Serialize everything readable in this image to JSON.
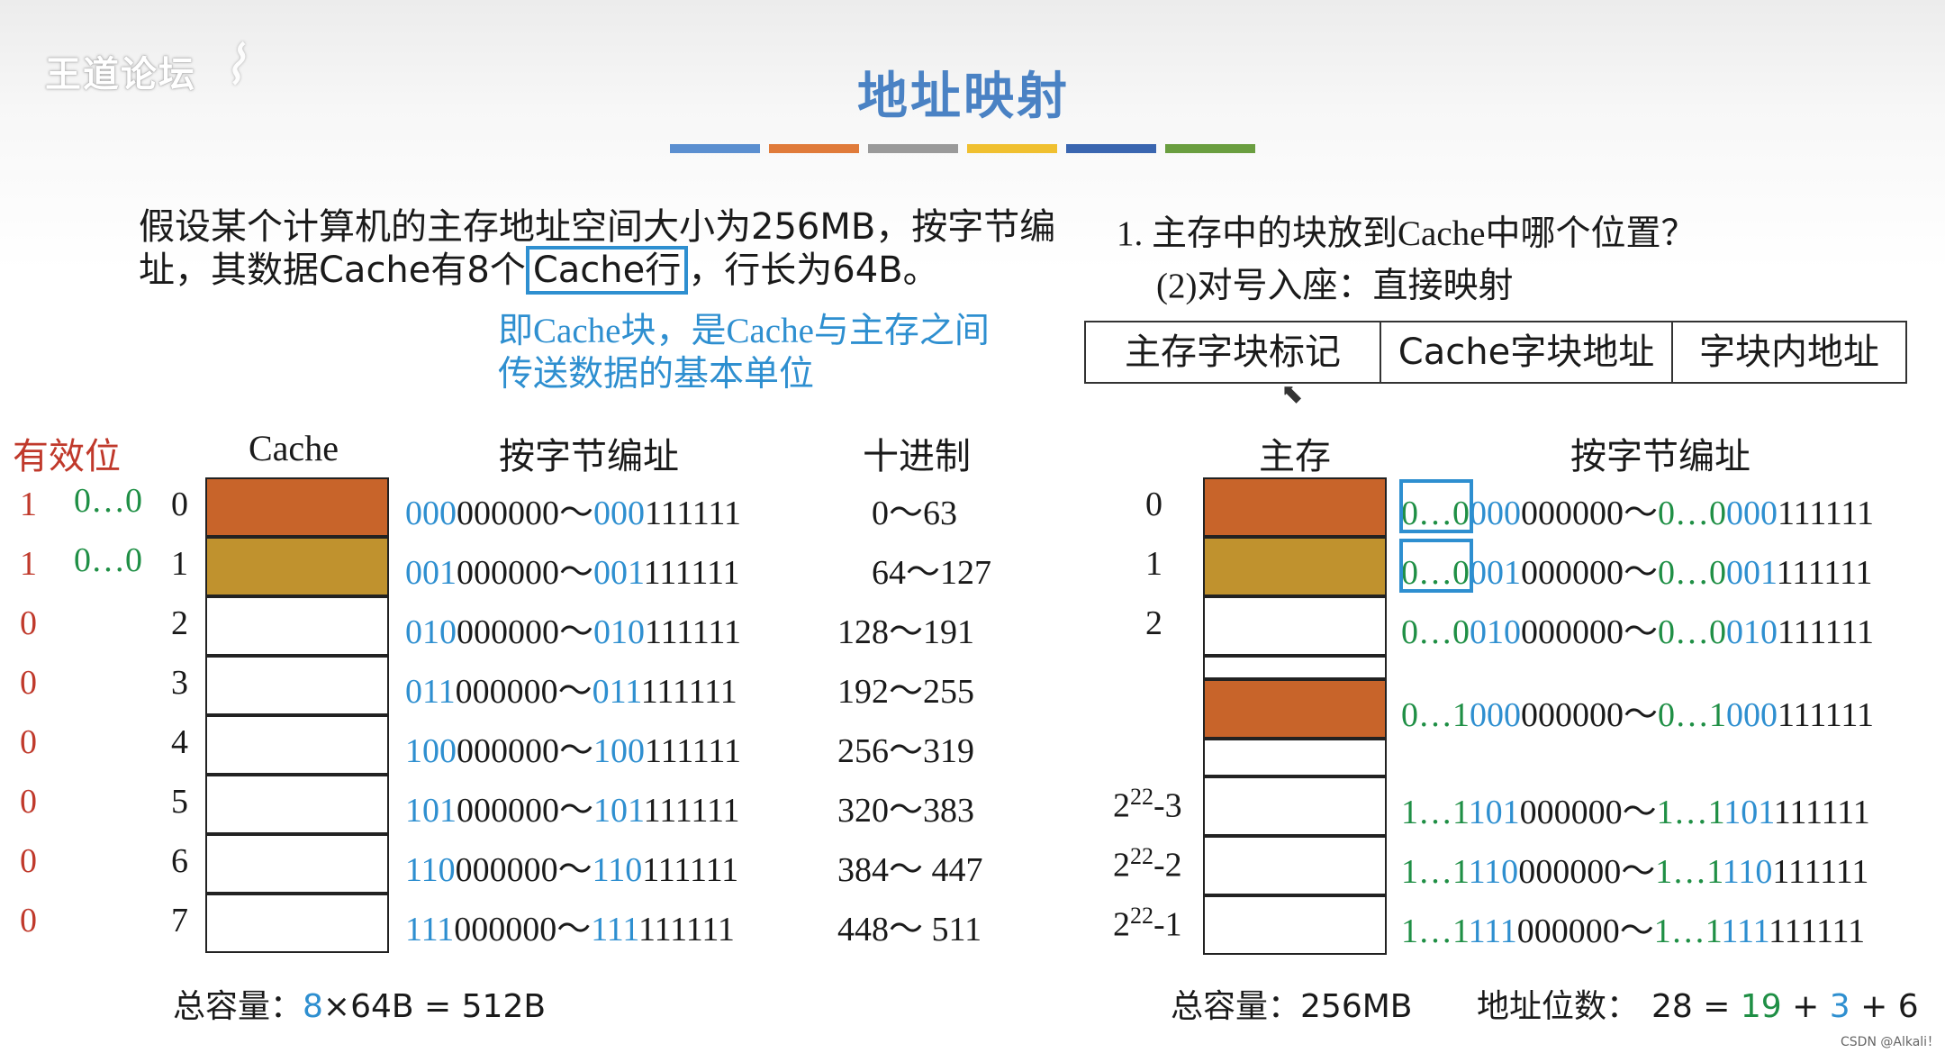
{
  "watermark": "王道论坛",
  "title": "地址映射",
  "title_bar_colors": [
    "#5b8fd0",
    "#e07b3a",
    "#9a9a9a",
    "#f0c030",
    "#3a66b0",
    "#6a9e40"
  ],
  "intro": {
    "line1": "假设某个计算机的主存地址空间大小为256MB，按字节编",
    "line2_a": "址，其数据Cache有8个",
    "line2_box": "Cache行",
    "line2_b": "，行长为64B。",
    "note1": "即Cache块，是Cache与主存之间",
    "note2": "传送数据的基本单位"
  },
  "question": {
    "q1": "1. 主存中的块放到Cache中哪个位置？",
    "q2": "(2)对号入座：直接映射"
  },
  "address_fields": [
    "主存字块标记",
    "Cache字块地址",
    "字块内地址"
  ],
  "left_headers": {
    "valid": "有效位",
    "cache": "Cache",
    "byte_addr": "按字节编址",
    "decimal": "十进制"
  },
  "right_headers": {
    "main": "主存",
    "byte_addr": "按字节编址"
  },
  "cache_rows": [
    {
      "valid": "1",
      "tag": "0…0",
      "idx": "0",
      "p1": "000",
      "s1": "000000～",
      "p2": "000",
      "s2": "111111",
      "dec": "0～63",
      "color": "#c8642a"
    },
    {
      "valid": "1",
      "tag": "0…0",
      "idx": "1",
      "p1": "001",
      "s1": "000000～",
      "p2": "001",
      "s2": "111111",
      "dec": "64～127",
      "color": "#c0922e"
    },
    {
      "valid": "0",
      "tag": "",
      "idx": "2",
      "p1": "010",
      "s1": "000000～",
      "p2": "010",
      "s2": "111111",
      "dec": "128～191",
      "color": ""
    },
    {
      "valid": "0",
      "tag": "",
      "idx": "3",
      "p1": "011",
      "s1": "000000～",
      "p2": "011",
      "s2": "111111",
      "dec": "192～255",
      "color": ""
    },
    {
      "valid": "0",
      "tag": "",
      "idx": "4",
      "p1": "100",
      "s1": "000000～",
      "p2": "100",
      "s2": "111111",
      "dec": "256～319",
      "color": ""
    },
    {
      "valid": "0",
      "tag": "",
      "idx": "5",
      "p1": "101",
      "s1": "000000～",
      "p2": "101",
      "s2": "111111",
      "dec": "320～383",
      "color": ""
    },
    {
      "valid": "0",
      "tag": "",
      "idx": "6",
      "p1": "110",
      "s1": "000000～",
      "p2": "110",
      "s2": "111111",
      "dec": "384～ 447",
      "color": ""
    },
    {
      "valid": "0",
      "tag": "",
      "idx": "7",
      "p1": "111",
      "s1": "000000～",
      "p2": "111",
      "s2": "111111",
      "dec": "448～ 511",
      "color": ""
    }
  ],
  "main_rows": [
    {
      "label": "0",
      "g1": "0…0",
      "b1": "000",
      "k1": "000000～",
      "g2": "0…0",
      "b2": "000",
      "k2": "111111",
      "color": "#c8642a",
      "boxed": true
    },
    {
      "label": "1",
      "g1": "0…0",
      "b1": "001",
      "k1": "000000～",
      "g2": "0…0",
      "b2": "001",
      "k2": "111111",
      "color": "#c0922e",
      "boxed": true
    },
    {
      "label": "2",
      "g1": "0…0",
      "b1": "010",
      "k1": "000000～",
      "g2": "0…0",
      "b2": "010",
      "k2": "111111",
      "color": "",
      "boxed": false
    },
    {
      "label": "",
      "g1": "0…1",
      "b1": "000",
      "k1": "000000～",
      "g2": "0…1",
      "b2": "000",
      "k2": "111111",
      "color": "#c8642a",
      "boxed": false
    },
    {
      "label_base": "2",
      "label_exp": "22",
      "label_tail": "-3",
      "g1": "1…1",
      "b1": "101",
      "k1": "000000～",
      "g2": "1…1",
      "b2": "101",
      "k2": "111111",
      "color": "",
      "boxed": false
    },
    {
      "label_base": "2",
      "label_exp": "22",
      "label_tail": "-2",
      "g1": "1…1",
      "b1": "110",
      "k1": "000000～",
      "g2": "1…1",
      "b2": "110",
      "k2": "111111",
      "color": "",
      "boxed": false
    },
    {
      "label_base": "2",
      "label_exp": "22",
      "label_tail": "-1",
      "g1": "1…1",
      "b1": "111",
      "k1": "000000～",
      "g2": "1…1",
      "b2": "111",
      "k2": "111111",
      "color": "",
      "boxed": false
    }
  ],
  "footer": {
    "left_label": "总容量：",
    "left_n": "8",
    "left_rest": "×64B = 512B",
    "mid_label": "总容量：",
    "mid_value": "256MB",
    "right_label": "地址位数：",
    "right_a": "28 = ",
    "right_b": "19",
    "right_c": " + ",
    "right_d": "3",
    "right_e": " + 6"
  },
  "credit": "CSDN @Alkali！"
}
